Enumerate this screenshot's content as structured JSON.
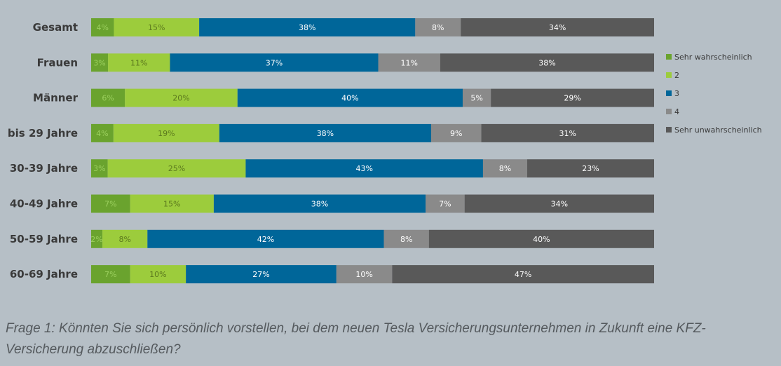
{
  "chart_data": {
    "type": "bar",
    "orientation": "horizontal",
    "stacked": true,
    "percent_stacked": true,
    "categories": [
      "Gesamt",
      "Frauen",
      "Männer",
      "bis 29 Jahre",
      "30-39 Jahre",
      "40-49 Jahre",
      "50-59 Jahre",
      "60-69 Jahre"
    ],
    "series": [
      {
        "name": "Sehr wahrscheinlich",
        "color": "#6aa32e",
        "label_color": "#9bcf5e",
        "values": [
          4,
          3,
          6,
          4,
          3,
          7,
          2,
          7
        ]
      },
      {
        "name": "2",
        "color": "#9ccc3c",
        "label_color": "#5c7a1e",
        "values": [
          15,
          11,
          20,
          19,
          25,
          15,
          8,
          10
        ]
      },
      {
        "name": "3",
        "color": "#006699",
        "label_color": "#ffffff",
        "values": [
          38,
          37,
          40,
          38,
          43,
          38,
          42,
          27
        ]
      },
      {
        "name": "4",
        "color": "#8a8a8a",
        "label_color": "#ffffff",
        "values": [
          8,
          11,
          5,
          9,
          8,
          7,
          8,
          10
        ]
      },
      {
        "name": "Sehr unwahrscheinlich",
        "color": "#595959",
        "label_color": "#ffffff",
        "values": [
          34,
          38,
          29,
          31,
          23,
          34,
          40,
          47
        ]
      }
    ],
    "xlim": [
      0,
      100
    ],
    "value_suffix": "%",
    "legend_position": "right",
    "grid": false
  },
  "caption": "Frage 1: Könnten Sie sich persönlich vorstellen, bei dem neuen Tesla Versicherungsunternehmen in Zukunft eine KFZ-Versicherung abzuschließen?"
}
